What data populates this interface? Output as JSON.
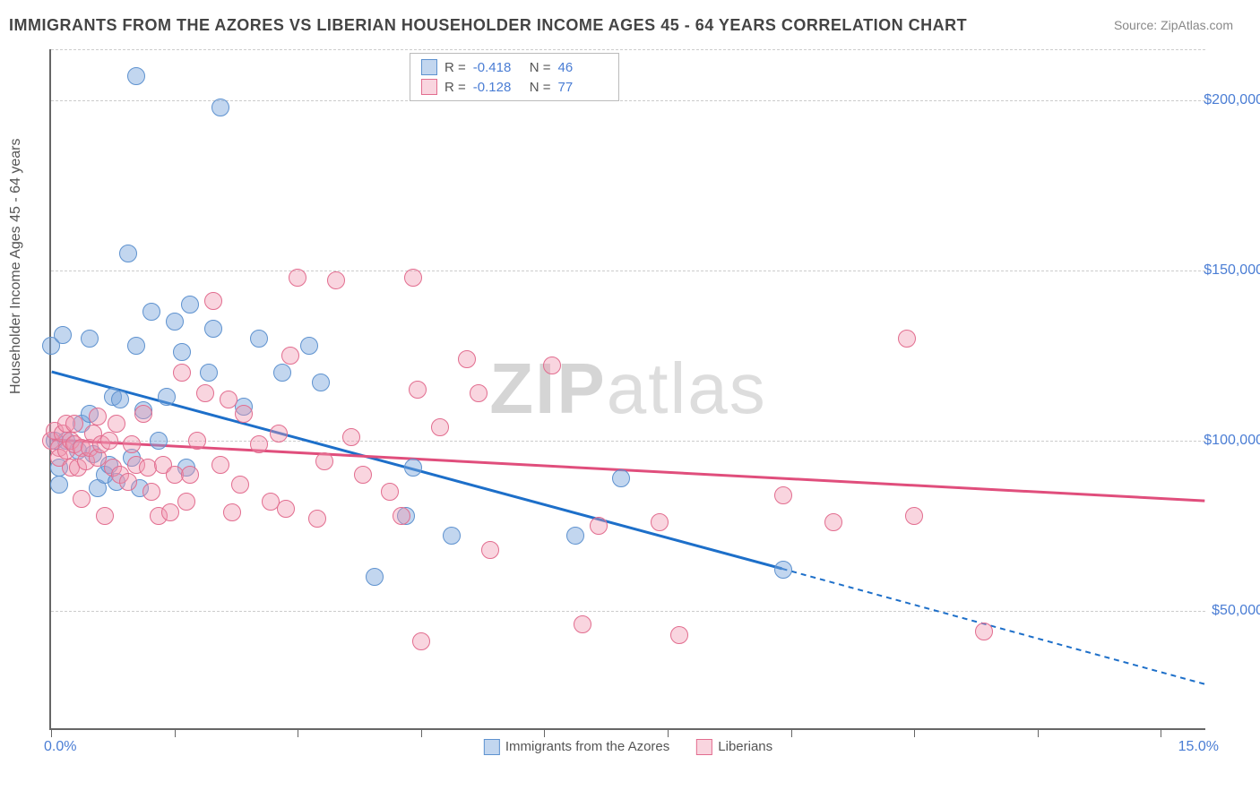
{
  "title": "IMMIGRANTS FROM THE AZORES VS LIBERIAN HOUSEHOLDER INCOME AGES 45 - 64 YEARS CORRELATION CHART",
  "source": "Source: ZipAtlas.com",
  "ylabel": "Householder Income Ages 45 - 64 years",
  "type": "scatter",
  "xlim": [
    0,
    15
  ],
  "ylim": [
    15000,
    215000
  ],
  "xtick_label_left": "0.0%",
  "xtick_label_right": "15.0%",
  "ytick_labels": [
    "$50,000",
    "$100,000",
    "$150,000",
    "$200,000"
  ],
  "ytick_values": [
    50000,
    100000,
    150000,
    200000
  ],
  "xtick_positions": [
    0,
    1.6,
    3.2,
    4.8,
    6.4,
    8.0,
    9.6,
    11.2,
    12.8,
    14.4
  ],
  "grid_color": "#cccccc",
  "background_color": "#ffffff",
  "axis_color": "#666666",
  "point_radius": 10,
  "series": [
    {
      "name": "Immigrants from the Azores",
      "color_fill": "rgba(120,165,220,0.45)",
      "color_stroke": "#5e92cf",
      "R": "-0.418",
      "N": "46",
      "trend": {
        "x1": 0,
        "y1": 120000,
        "x2": 9.5,
        "y2": 62000,
        "x2_dash": 15,
        "y2_dash": 28000,
        "color": "#1d6fc9",
        "width": 3
      },
      "points": [
        [
          0.0,
          128000
        ],
        [
          0.05,
          100000
        ],
        [
          0.1,
          92000
        ],
        [
          0.1,
          87000
        ],
        [
          0.15,
          131000
        ],
        [
          0.2,
          100000
        ],
        [
          0.35,
          97000
        ],
        [
          0.4,
          105000
        ],
        [
          0.5,
          108000
        ],
        [
          0.5,
          130000
        ],
        [
          0.55,
          96000
        ],
        [
          0.6,
          86000
        ],
        [
          0.7,
          90000
        ],
        [
          0.75,
          93000
        ],
        [
          0.8,
          113000
        ],
        [
          0.85,
          88000
        ],
        [
          0.9,
          112000
        ],
        [
          1.0,
          155000
        ],
        [
          1.05,
          95000
        ],
        [
          1.1,
          128000
        ],
        [
          1.15,
          86000
        ],
        [
          1.2,
          109000
        ],
        [
          1.3,
          138000
        ],
        [
          1.1,
          207000
        ],
        [
          1.4,
          100000
        ],
        [
          1.5,
          113000
        ],
        [
          1.6,
          135000
        ],
        [
          1.7,
          126000
        ],
        [
          1.75,
          92000
        ],
        [
          1.8,
          140000
        ],
        [
          2.05,
          120000
        ],
        [
          2.1,
          133000
        ],
        [
          2.2,
          198000
        ],
        [
          2.5,
          110000
        ],
        [
          2.7,
          130000
        ],
        [
          3.0,
          120000
        ],
        [
          3.35,
          128000
        ],
        [
          3.5,
          117000
        ],
        [
          4.2,
          60000
        ],
        [
          4.6,
          78000
        ],
        [
          4.7,
          92000
        ],
        [
          5.2,
          72000
        ],
        [
          6.8,
          72000
        ],
        [
          7.4,
          89000
        ],
        [
          9.5,
          62000
        ]
      ]
    },
    {
      "name": "Liberians",
      "color_fill": "rgba(240,150,175,0.40)",
      "color_stroke": "#e26d8f",
      "R": "-0.128",
      "N": "77",
      "trend": {
        "x1": 0,
        "y1": 100000,
        "x2": 15,
        "y2": 82000,
        "color": "#e04e7c",
        "width": 3
      },
      "points": [
        [
          0.0,
          100000
        ],
        [
          0.05,
          103000
        ],
        [
          0.1,
          98000
        ],
        [
          0.1,
          95000
        ],
        [
          0.15,
          102000
        ],
        [
          0.2,
          105000
        ],
        [
          0.2,
          97000
        ],
        [
          0.25,
          100000
        ],
        [
          0.25,
          92000
        ],
        [
          0.3,
          99000
        ],
        [
          0.3,
          105000
        ],
        [
          0.35,
          92000
        ],
        [
          0.4,
          98000
        ],
        [
          0.4,
          83000
        ],
        [
          0.45,
          94000
        ],
        [
          0.5,
          98000
        ],
        [
          0.55,
          102000
        ],
        [
          0.6,
          95000
        ],
        [
          0.6,
          107000
        ],
        [
          0.65,
          99000
        ],
        [
          0.7,
          78000
        ],
        [
          0.75,
          100000
        ],
        [
          0.8,
          92000
        ],
        [
          0.85,
          105000
        ],
        [
          0.9,
          90000
        ],
        [
          1.0,
          88000
        ],
        [
          1.05,
          99000
        ],
        [
          1.1,
          93000
        ],
        [
          1.2,
          108000
        ],
        [
          1.25,
          92000
        ],
        [
          1.3,
          85000
        ],
        [
          1.4,
          78000
        ],
        [
          1.45,
          93000
        ],
        [
          1.55,
          79000
        ],
        [
          1.6,
          90000
        ],
        [
          1.7,
          120000
        ],
        [
          1.75,
          82000
        ],
        [
          1.8,
          90000
        ],
        [
          1.9,
          100000
        ],
        [
          2.0,
          114000
        ],
        [
          2.1,
          141000
        ],
        [
          2.2,
          93000
        ],
        [
          2.3,
          112000
        ],
        [
          2.35,
          79000
        ],
        [
          2.45,
          87000
        ],
        [
          2.5,
          108000
        ],
        [
          2.7,
          99000
        ],
        [
          2.85,
          82000
        ],
        [
          2.95,
          102000
        ],
        [
          3.05,
          80000
        ],
        [
          3.1,
          125000
        ],
        [
          3.2,
          148000
        ],
        [
          3.45,
          77000
        ],
        [
          3.55,
          94000
        ],
        [
          3.7,
          147000
        ],
        [
          3.9,
          101000
        ],
        [
          4.05,
          90000
        ],
        [
          4.4,
          85000
        ],
        [
          4.55,
          78000
        ],
        [
          4.7,
          148000
        ],
        [
          4.75,
          115000
        ],
        [
          4.8,
          41000
        ],
        [
          5.05,
          104000
        ],
        [
          5.4,
          124000
        ],
        [
          5.55,
          114000
        ],
        [
          5.7,
          68000
        ],
        [
          6.5,
          122000
        ],
        [
          6.9,
          46000
        ],
        [
          7.1,
          75000
        ],
        [
          7.9,
          76000
        ],
        [
          8.15,
          43000
        ],
        [
          9.5,
          84000
        ],
        [
          10.15,
          76000
        ],
        [
          11.1,
          130000
        ],
        [
          11.2,
          78000
        ],
        [
          12.1,
          44000
        ]
      ]
    }
  ],
  "watermark": {
    "bold": "ZIP",
    "rest": "atlas"
  },
  "legend_top_labels": {
    "R": "R =",
    "N": "N ="
  }
}
